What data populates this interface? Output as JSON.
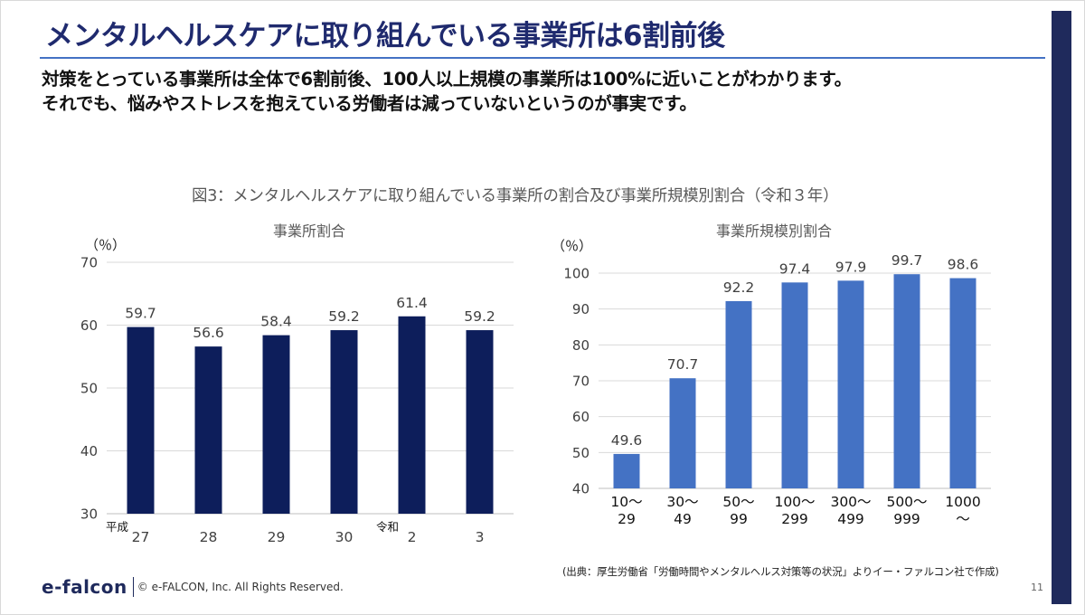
{
  "slide": {
    "title": "メンタルヘルスケアに取り組んでいる事業所は6割前後",
    "lead_line1": "対策をとっている事業所は全体で6割前後、100人以上規模の事業所は100%に近いことがわかります。",
    "lead_line2": "それでも、悩みやストレスを抱えている労働者は減っていないというのが事実です。",
    "figure_title": "図3：メンタルヘルスケアに取り組んでいる事業所の割合及び事業所規模別割合（令和３年）",
    "source": "(出典：厚生労働省「労働時間やメンタルヘルス対策等の状況」よりイー・ファルコン社で作成)",
    "logo": "e-falcon",
    "copyright": "© e-FALCON, Inc. All Rights Reserved.",
    "page_number": "11"
  },
  "chart_data": [
    {
      "type": "bar",
      "title": "事業所割合",
      "ylabel": "（％）",
      "xlabel": "",
      "era_labels": [
        "平成",
        "令和"
      ],
      "categories": [
        "27",
        "28",
        "29",
        "30",
        "2",
        "3"
      ],
      "values": [
        59.7,
        56.6,
        58.4,
        59.2,
        61.4,
        59.2
      ],
      "value_labels": [
        "59.7",
        "56.6",
        "58.4",
        "59.2",
        "61.4",
        "59.2"
      ],
      "ylim": [
        30,
        70
      ],
      "yticks": [
        "30",
        "40",
        "50",
        "60",
        "70"
      ],
      "grid": true,
      "color": "#0d1e5b"
    },
    {
      "type": "bar",
      "title": "事業所規模別割合",
      "ylabel": "（％）",
      "xlabel": "",
      "categories": [
        [
          "10～",
          "29"
        ],
        [
          "30～",
          "49"
        ],
        [
          "50～",
          "99"
        ],
        [
          "100～",
          "299"
        ],
        [
          "300～",
          "499"
        ],
        [
          "500～",
          "999"
        ],
        [
          "1000",
          "～"
        ]
      ],
      "values": [
        49.6,
        70.7,
        92.2,
        97.4,
        97.9,
        99.7,
        98.6
      ],
      "value_labels": [
        "49.6",
        "70.7",
        "92.2",
        "97.4",
        "97.9",
        "99.7",
        "98.6"
      ],
      "ylim": [
        40,
        100
      ],
      "yticks": [
        "40",
        "50",
        "60",
        "70",
        "80",
        "90",
        "100"
      ],
      "grid": true,
      "color": "#4472c4"
    }
  ]
}
